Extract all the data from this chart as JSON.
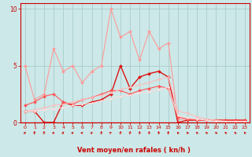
{
  "xlabel": "Vent moyen/en rafales ( kn/h )",
  "xlim": [
    -0.5,
    23.5
  ],
  "ylim": [
    0,
    10.5
  ],
  "yticks": [
    0,
    5,
    10
  ],
  "xticks": [
    0,
    1,
    2,
    3,
    4,
    5,
    6,
    7,
    8,
    9,
    10,
    11,
    12,
    13,
    14,
    15,
    16,
    17,
    18,
    19,
    20,
    21,
    22,
    23
  ],
  "background_color": "#cce8e8",
  "grid_color": "#aacccc",
  "axis_color": "#cc0000",
  "lines": [
    {
      "x": [
        0,
        1,
        2,
        3,
        4,
        5,
        6,
        7,
        8,
        9,
        10,
        11,
        12,
        13,
        14,
        15,
        16,
        17,
        18,
        19,
        20,
        21,
        22,
        23
      ],
      "y": [
        5.0,
        2.0,
        2.5,
        6.5,
        4.5,
        5.0,
        3.5,
        4.5,
        5.0,
        10.0,
        7.5,
        8.0,
        5.5,
        8.0,
        6.5,
        7.0,
        0.3,
        0.3,
        0.3,
        0.2,
        0.2,
        0.2,
        0.2,
        0.2
      ],
      "color": "#ff9999",
      "lw": 0.8,
      "marker": "D",
      "ms": 2.0
    },
    {
      "x": [
        0,
        1,
        2,
        3,
        4,
        5,
        6,
        7,
        8,
        9,
        10,
        11,
        12,
        13,
        14,
        15,
        16,
        17,
        18,
        19,
        20,
        21,
        22,
        23
      ],
      "y": [
        1.0,
        1.0,
        0.0,
        0.0,
        1.8,
        1.5,
        1.5,
        1.8,
        2.0,
        2.5,
        5.0,
        3.0,
        4.0,
        4.3,
        4.5,
        4.0,
        0.0,
        0.2,
        0.2,
        0.2,
        0.2,
        0.2,
        0.2,
        0.2
      ],
      "color": "#dd1111",
      "lw": 1.0,
      "marker": "D",
      "ms": 2.0
    },
    {
      "x": [
        0,
        1,
        2,
        3,
        4,
        5,
        6,
        7,
        8,
        9,
        10,
        11,
        12,
        13,
        14,
        15,
        16,
        17,
        18,
        19,
        20,
        21,
        22,
        23
      ],
      "y": [
        1.5,
        1.8,
        2.3,
        2.5,
        1.8,
        1.6,
        2.0,
        2.2,
        2.5,
        2.8,
        2.8,
        2.5,
        2.8,
        3.0,
        3.2,
        3.0,
        0.5,
        0.3,
        0.2,
        0.2,
        0.2,
        0.2,
        0.2,
        0.2
      ],
      "color": "#ff5555",
      "lw": 0.8,
      "marker": "D",
      "ms": 2.0
    },
    {
      "x": [
        0,
        1,
        2,
        3,
        4,
        5,
        6,
        7,
        8,
        9,
        10,
        11,
        12,
        13,
        14,
        15,
        16,
        17,
        18,
        19,
        20,
        21,
        22,
        23
      ],
      "y": [
        1.0,
        1.1,
        1.3,
        1.5,
        1.6,
        1.8,
        2.0,
        2.2,
        2.4,
        2.6,
        2.9,
        3.1,
        3.3,
        3.5,
        3.8,
        4.0,
        1.0,
        0.8,
        0.5,
        0.3,
        0.2,
        0.1,
        0.1,
        0.1
      ],
      "color": "#ffbbbb",
      "lw": 0.8,
      "marker": "D",
      "ms": 1.5
    },
    {
      "x": [
        0,
        1,
        2,
        3,
        4,
        5,
        6,
        7,
        8,
        9,
        10,
        11,
        12,
        13,
        14,
        15,
        16,
        17,
        18,
        19,
        20,
        21,
        22,
        23
      ],
      "y": [
        1.0,
        1.0,
        1.1,
        1.2,
        1.3,
        1.5,
        1.6,
        1.7,
        1.9,
        2.1,
        2.3,
        2.4,
        2.6,
        2.7,
        2.9,
        3.1,
        0.6,
        0.4,
        0.3,
        0.2,
        0.1,
        0.1,
        0.1,
        0.1
      ],
      "color": "#ffdddd",
      "lw": 0.8,
      "marker": "D",
      "ms": 1.5
    }
  ],
  "wind_angles": [
    45,
    10,
    0,
    50,
    35,
    50,
    60,
    50,
    10,
    75,
    10,
    10,
    10,
    10,
    10,
    10,
    -45,
    -45,
    -45,
    -45,
    -45,
    -45,
    -45,
    -45
  ]
}
